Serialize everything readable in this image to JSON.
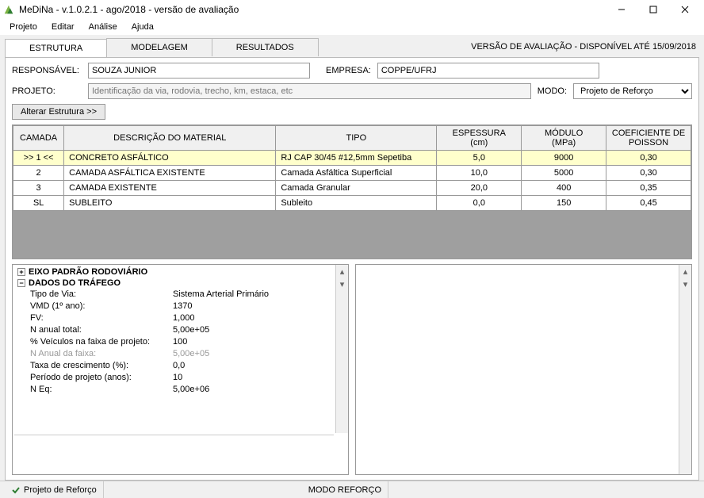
{
  "window": {
    "title": "MeDiNa - v.1.0.2.1 - ago/2018 - versão de avaliação",
    "logo_colors": [
      "#7cb342",
      "#2e7d32"
    ]
  },
  "menu": [
    "Projeto",
    "Editar",
    "Análise",
    "Ajuda"
  ],
  "tabs": {
    "items": [
      "ESTRUTURA",
      "MODELAGEM",
      "RESULTADOS"
    ],
    "active": 0,
    "eval_label": "VERSÃO DE AVALIAÇÃO - DISPONÍVEL ATÉ 15/09/2018"
  },
  "form": {
    "responsavel_label": "RESPONSÁVEL:",
    "responsavel_value": "SOUZA JUNIOR",
    "empresa_label": "EMPRESA:",
    "empresa_value": "COPPE/UFRJ",
    "projeto_label": "PROJETO:",
    "projeto_placeholder": "Identificação da via, rodovia, trecho, km, estaca, etc",
    "modo_label": "MODO:",
    "modo_value": "Projeto de Reforço",
    "alterar_btn": "Alterar Estrutura >>"
  },
  "layers": {
    "headers": {
      "camada": "CAMADA",
      "descricao": "DESCRIÇÃO DO MATERIAL",
      "tipo": "TIPO",
      "espessura": "ESPESSURA\n(cm)",
      "modulo": "MÓDULO\n(MPa)",
      "poisson": "COEFICIENTE DE\nPOISSON"
    },
    "rows": [
      {
        "camada": ">> 1 <<",
        "descricao": "CONCRETO ASFÁLTICO",
        "tipo": "RJ CAP 30/45 #12,5mm Sepetiba",
        "espessura": "5,0",
        "modulo": "9000",
        "poisson": "0,30",
        "selected": true
      },
      {
        "camada": "2",
        "descricao": "CAMADA ASFÁLTICA EXISTENTE",
        "tipo": "Camada Asfáltica Superficial",
        "espessura": "10,0",
        "modulo": "5000",
        "poisson": "0,30",
        "selected": false
      },
      {
        "camada": "3",
        "descricao": "CAMADA EXISTENTE",
        "tipo": "Camada Granular",
        "espessura": "20,0",
        "modulo": "400",
        "poisson": "0,35",
        "selected": false
      },
      {
        "camada": "SL",
        "descricao": "SUBLEITO",
        "tipo": "Subleito",
        "espessura": "0,0",
        "modulo": "150",
        "poisson": "0,45",
        "selected": false
      }
    ],
    "background_fill": "#9f9f9f",
    "selected_bg": "#ffffcc"
  },
  "left_panel": {
    "section1": "EIXO PADRÃO RODOVIÁRIO",
    "section2": "DADOS DO TRÁFEGO",
    "rows": [
      {
        "k": "Tipo de Via:",
        "v": "Sistema Arterial Primário",
        "disabled": false
      },
      {
        "k": "VMD (1º ano):",
        "v": "1370",
        "disabled": false
      },
      {
        "k": "FV:",
        "v": "1,000",
        "disabled": false
      },
      {
        "k": "N anual total:",
        "v": "5,00e+05",
        "disabled": false
      },
      {
        "k": "% Veículos na faixa de projeto:",
        "v": "100",
        "disabled": false
      },
      {
        "k": "N Anual da faixa:",
        "v": "5,00e+05",
        "disabled": true
      },
      {
        "k": "Taxa de crescimento (%):",
        "v": "0,0",
        "disabled": false
      },
      {
        "k": "Período de projeto (anos):",
        "v": "10",
        "disabled": false
      },
      {
        "k": "N Eq:",
        "v": "5,00e+06",
        "disabled": false
      }
    ]
  },
  "status": {
    "left_icon_color": "#2e7d32",
    "left": "Projeto de Reforço",
    "mid": "MODO REFORÇO"
  },
  "colors": {
    "border": "#999999",
    "panel_bg": "#ffffff",
    "app_bg": "#f0f0f0"
  }
}
